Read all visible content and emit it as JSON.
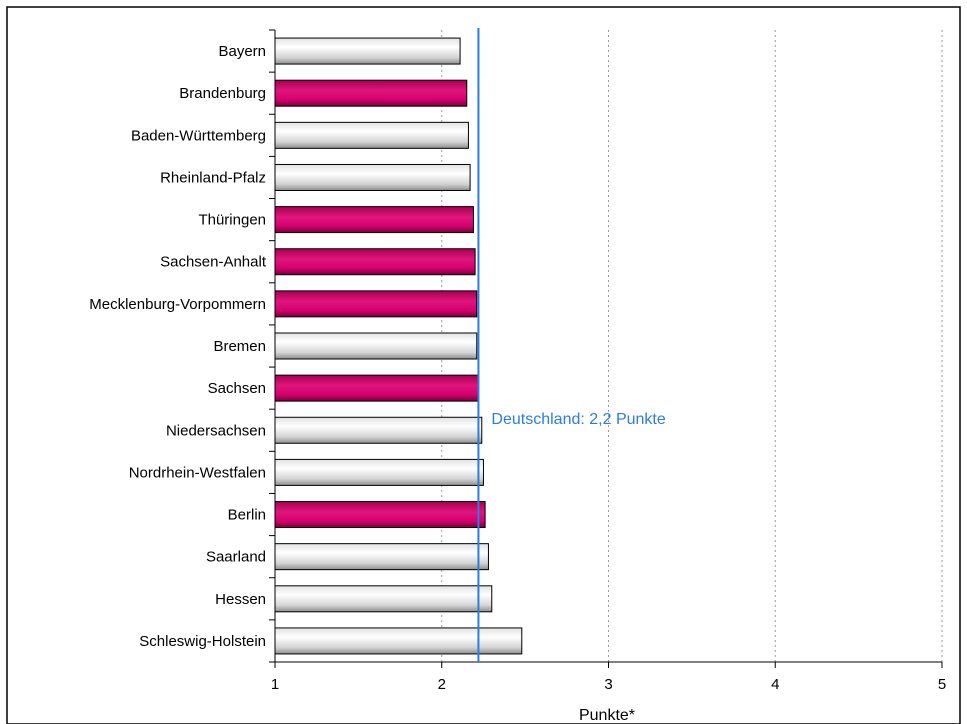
{
  "chart_data": {
    "type": "bar",
    "orientation": "horizontal",
    "categories": [
      "Bayern",
      "Brandenburg",
      "Baden-Württemberg",
      "Rheinland-Pfalz",
      "Thüringen",
      "Sachsen-Anhalt",
      "Mecklenburg-Vorpommern",
      "Bremen",
      "Sachsen",
      "Niedersachsen",
      "Nordrhein-Westfalen",
      "Berlin",
      "Saarland",
      "Hessen",
      "Schleswig-Holstein"
    ],
    "values": [
      2.11,
      2.15,
      2.16,
      2.17,
      2.19,
      2.2,
      2.21,
      2.21,
      2.22,
      2.24,
      2.25,
      2.26,
      2.28,
      2.3,
      2.48
    ],
    "highlighted": [
      false,
      true,
      false,
      false,
      true,
      true,
      true,
      false,
      true,
      false,
      false,
      true,
      false,
      false,
      false
    ],
    "xlabel": "Punkte*",
    "xlim": [
      1,
      5
    ],
    "xticks": [
      "1",
      "2",
      "3",
      "4",
      "5"
    ],
    "grid": "vertical dotted",
    "reference_line": {
      "value": 2.22,
      "label": "Deutschland: 2,2 Punkte"
    },
    "colors": {
      "highlight": "#d4006e",
      "default": "#c8c8c8",
      "reference": "#2a7de1"
    }
  }
}
